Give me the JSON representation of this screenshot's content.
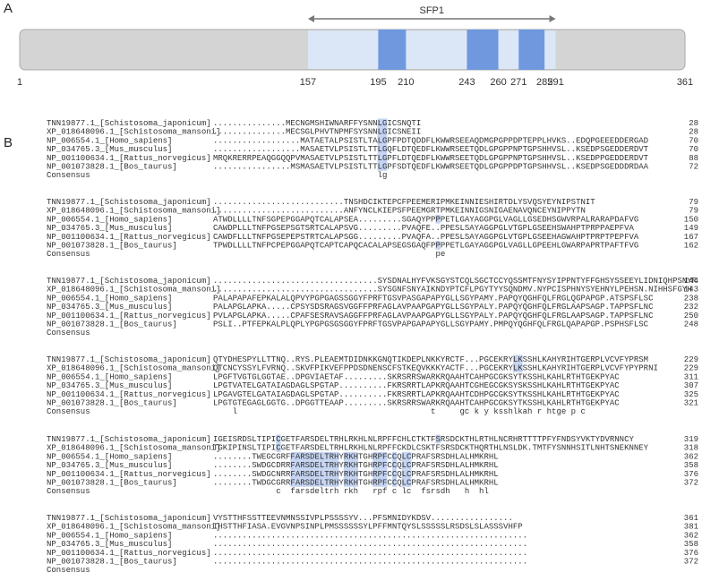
{
  "panel_a": {
    "label": "A",
    "domain_label": "SFP1",
    "range": [
      1,
      361
    ],
    "domain": {
      "start": 157,
      "end": 291
    },
    "motifs": [
      {
        "start": 195,
        "end": 210
      },
      {
        "start": 243,
        "end": 260
      },
      {
        "start": 271,
        "end": 285
      }
    ]
  },
  "panel_b": {
    "label": "B",
    "names": [
      "TNN19877.1_[Schistosoma_japonicum]",
      "XP_018648096.1_[Schistosoma_mansoni]",
      "NP_006554.1_[Homo_sapiens]",
      "NP_034765.3_[Mus_musculus]",
      "NP_001100634.1_[Rattus_norvegicus]",
      "NP_001073828.1_[Bos_taurus]"
    ],
    "consensus_label": "Consensus",
    "blocks": [
      {
        "rows": [
          {
            "seq": "...............MECNGMSHIWNARFFYSNNLGICSNQTI",
            "end": 28
          },
          {
            "seq": "...............MECSGLPHVTNPMFSYSNNLGICSNEII",
            "end": 28
          },
          {
            "seq": "..................MATAETALPSISTLTALGPFPDTQDDFLKWWRSEEAQDMGPGPPDPTEPPLHVKS..EDQPGEEEDDERGAD",
            "end": 70
          },
          {
            "seq": "..................MASAETVLPSISTLTTLGQFLDTQEDFLKWWRSEETQDLGPGPPNPTGPSHHVSL..KSEDPSGEDDERDVT",
            "end": 70
          },
          {
            "seq": "MRQKRERRPEAQGGQQPVMASAETVLPSISTLTTLGPFLDTQEDFLKWWRSEETQDLGPGPPNPTGPSHHVSL..KSEDPPGEDDERDVT",
            "end": 88
          },
          {
            "seq": "................MSMASAETVLPSISTLTTLGPFSDTQEDFLKWWRSEETQDLGPGPPDPTGPSHHVSL..KSEDPSGEDDDRDAA",
            "end": 72
          }
        ],
        "consensus": "                                  lg"
      },
      {
        "rows": [
          {
            "seq": "...........................TNSHDCIKTEPCFPEEMERIPMKEINNIESHIRTDLYSVQSYEYNIPSTNIT",
            "end": 79
          },
          {
            "seq": "...........................ANFYNCLKIEPSFPEEMGRTPMKEINNIGSNIGAENAVQNCEYNIPPYTN",
            "end": 79
          },
          {
            "seq": "ATWDLLLLTNFSGPEPGGAPQTCALAPSEA.........SGAQYPPPPETLGAYAGGPGLVAGLLGSEDHSGWVRPALRARAPDAFVG",
            "end": 150
          },
          {
            "seq": "CAWDPLLLTNFPGSEPSGTSRTCALAPSVG.........PVAQFE..PPESLSAYAGGPGLVTGPLGSEEHSWAHPTPRPPAEPFVA",
            "end": 149
          },
          {
            "seq": "CAWDFLLLTNFPGSEPEPSTRTCALAPSGG.........PVAQFA..PPESLSAYAGGPGLVTGPLGSEEHAGWAHPTPRPTPEPFVA",
            "end": 167
          },
          {
            "seq": "TPWDLLLLTNFPCPEPGGAPQTCAPTCAPQCACALAPSEGSGAQFPPPPETLGAYAGGPGLVAGLLGPEEHLGWARPAPRTPAFTFVG",
            "end": 162
          }
        ],
        "consensus": "                                              pe"
      },
      {
        "rows": [
          {
            "seq": "..................................SYSDNALHYFVKSGYSTCQLSGCTCCYQSSMTFNYSYIPPNTYFFGHSYSSEEYLIDNIQHPSNYR",
            "end": 144
          },
          {
            "seq": "..................................SYSGNFSNYAIKNDYPTCFLPGYTYYSQNDMV.NYPCISPHNYSYEHNYLPEHSN.NIHHSFGYH",
            "end": 143
          },
          {
            "seq": "PALAPAPAFEPKALALQPVYPGPGAGSSGGYFPRFTGSVPASGAPAPYGLLSGYPAMY.PAPQYQGHFQLFRGLQGPAPGP.ATSPSFLSC",
            "end": 238
          },
          {
            "seq": "PALAPGLAPKA.....CPSYSDSRAGSVGGFFPRFAGLAVPAAPGAPYGLLSGYPALY.PAPQYQGHFQLFRGLAAPSAGP.TAPPSFLNC",
            "end": 232
          },
          {
            "seq": "PVLAPGLAPKA.....CPAFSESRAVSAGGFFPRFAGLAVPAAPGAPYGLLSGYPALY.PAPQYQGHFQLFRGLAAPSAGP.TAPPSFLNC",
            "end": 250
          },
          {
            "seq": "PSLI..PTFEPKALPLQPLYPGPGSGSGGYFPRFTGSVPAPGAPAPYGLLSGYPAMY.PMPQYQGHFQLFRGLQAPAPGP.PSPHSFLSC",
            "end": 248
          }
        ]
      },
      {
        "rows": [
          {
            "seq": "QTYDHESPYLLTTNQ..RYS.PLEAEMTDIDNKKGNQTIKDEPLNKKYRCTF...PGCEKRYLKSSHLKAHYRIHTGERPLVCVFYPRSM",
            "end": 229
          },
          {
            "seq": "QTCNCYSSYLFVRNQ..SKVFPIKVEFPPDSDNENSCFSTKEQVKKKYACTF...PGCEKRYLKSSHLKAHYRIHTGERPLVCVFYPYPRNI",
            "end": 229
          },
          {
            "seq": "LPGFTVGTGLGGTAE..DPGVIAETAF.........SKRSRRSWARKRQAAHTCAHPGCGKSYTKSSHLKAHLRTHTGEKPYAC",
            "end": 311
          },
          {
            "seq": "LPGTVATELGATAIAGDAGLSPGTAP..........FKRSRRTLAPKRQAAHTCGHEGCGKSYSKSSHLKAHLRTHTGEKPYAC",
            "end": 307
          },
          {
            "seq": "LPGAVGTELGATAIAGDAGLSPGTAP..........FKRSRRTLAPKRQAAHTCDHPGCGKSYTKSSHLKAHLRTHTGEKPYAC",
            "end": 325
          },
          {
            "seq": "LPGTGTEGAGLGGTG..DPGGTTEAAP.........SKRSRRSWARKRQAAHTCAHPGCGKSYTKSSHLKAHLRTHTGEKPYAC",
            "end": 321
          }
        ],
        "consensus": "    l                                        t     gc k y ksshlkah r htge p c"
      },
      {
        "rows": [
          {
            "seq": "IGEISRDSLTIPICGETFARSDELTRHLRKHLNLRPFFCHLCTKTFSRSDCKTHLRTHLNCRHRTTTTPFYFNDSYVKTYDVRNNCY",
            "end": 319
          },
          {
            "seq": "TGKIPINSLTIPICGETFARSDELTRHLRKHLNLRPFFCKDLCSKTFSRSDCKTHQRTHLNSLDK.TMTFYSNNHSITLNHTSNEKNNEY",
            "end": 318
          },
          {
            "seq": "........TWEGCGRFFARSDELTRHYRKHTGHRPFCCQLCPRAFSRSDHLALHMKRHL",
            "end": 362
          },
          {
            "seq": "........SWDGCDRRFARSDELTRHYRKHTGHRPFCCQLCPRAFSRSDHLALHMKRHL",
            "end": 358
          },
          {
            "seq": "........SWDGCNRRFARSDELTRHYRKHTGHRPFCCQLCPRAFSRSDHLALHMKRHL",
            "end": 376
          },
          {
            "seq": "........TWDGCGRRFARSDELTRHYRKHTGHRPFCCQLCPRAFSRSDHLALHMKRHL",
            "end": 372
          }
        ],
        "consensus": "             c  farsdeltrh rkh   rpf c lc  fsrsdh   h  hl"
      },
      {
        "rows": [
          {
            "seq": "VYSTTHFSSTTEEVNMNSSIVPLPSSSSYV...PFSMNIDYKDSV.................",
            "end": 361
          },
          {
            "seq": "IHSTTHFIASA.EVGVNPSINPLPMSSSSSSYLPFFMNTQYSLSSSSSLRSDSLSLASSSVHFP",
            "end": 381
          },
          {
            "seq": ".................................................................",
            "end": 362
          },
          {
            "seq": ".................................................................",
            "end": 358
          },
          {
            "seq": ".................................................................",
            "end": 376
          },
          {
            "seq": ".................................................................",
            "end": 372
          }
        ]
      }
    ]
  }
}
